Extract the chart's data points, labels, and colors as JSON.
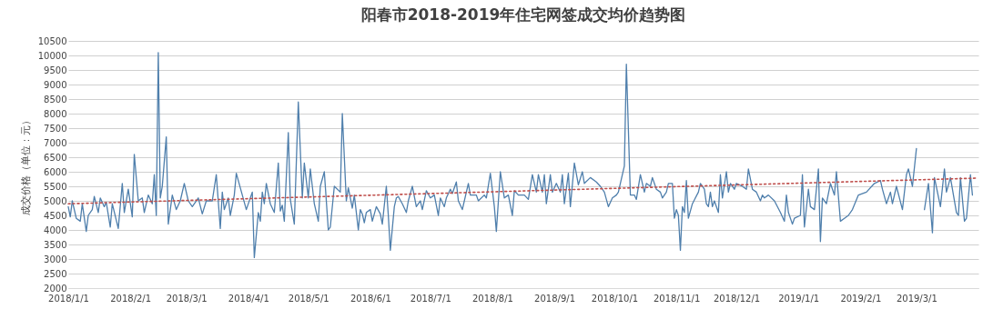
{
  "chart_data": {
    "type": "line",
    "title": "阳春市2018-2019年住宅网签成交均价趋势图",
    "ylabel": "成交价格（单位：元）",
    "xlim": [
      "2018-01-01",
      "2019-04-01"
    ],
    "xticks": [
      {
        "value": "2018-01-01",
        "label": "2018/1/1"
      },
      {
        "value": "2018-02-01",
        "label": "2018/2/1"
      },
      {
        "value": "2018-03-01",
        "label": "2018/3/1"
      },
      {
        "value": "2018-04-01",
        "label": "2018/4/1"
      },
      {
        "value": "2018-05-01",
        "label": "2018/5/1"
      },
      {
        "value": "2018-06-01",
        "label": "2018/6/1"
      },
      {
        "value": "2018-07-01",
        "label": "2018/7/1"
      },
      {
        "value": "2018-08-01",
        "label": "2018/8/1"
      },
      {
        "value": "2018-09-01",
        "label": "2018/9/1"
      },
      {
        "value": "2018-10-01",
        "label": "2018/10/1"
      },
      {
        "value": "2018-11-01",
        "label": "2018/11/1"
      },
      {
        "value": "2018-12-01",
        "label": "2018/12/1"
      },
      {
        "value": "2019-01-01",
        "label": "2019/1/1"
      },
      {
        "value": "2019-02-01",
        "label": "2019/2/1"
      },
      {
        "value": "2019-03-01",
        "label": "2019/3/1"
      }
    ],
    "ylim": [
      2000,
      10500
    ],
    "yticks": [
      2000,
      2500,
      3000,
      3500,
      4000,
      4500,
      5000,
      5500,
      6000,
      6500,
      7000,
      7500,
      8000,
      8500,
      9000,
      9500,
      10000,
      10500
    ],
    "grid": "y",
    "marker": "none",
    "series": [
      {
        "type": "line",
        "color": "#4f7fac",
        "line_style": "solid",
        "x": [
          "2018-01-01",
          "2018-01-02",
          "2018-01-03",
          "2018-01-05",
          "2018-01-07",
          "2018-01-08",
          "2018-01-10",
          "2018-01-11",
          "2018-01-13",
          "2018-01-14",
          "2018-01-16",
          "2018-01-17",
          "2018-01-19",
          "2018-01-20",
          "2018-01-22",
          "2018-01-23",
          "2018-01-26",
          "2018-01-28",
          "2018-01-29",
          "2018-01-31",
          "2018-02-02",
          "2018-02-03",
          "2018-02-05",
          "2018-02-07",
          "2018-02-08",
          "2018-02-10",
          "2018-02-12",
          "2018-02-13",
          "2018-02-14",
          "2018-02-15",
          "2018-02-16",
          "2018-02-17",
          "2018-02-19",
          "2018-02-20",
          "2018-02-22",
          "2018-02-24",
          "2018-02-26",
          "2018-02-28",
          "2018-03-02",
          "2018-03-04",
          "2018-03-07",
          "2018-03-09",
          "2018-03-11",
          "2018-03-14",
          "2018-03-16",
          "2018-03-18",
          "2018-03-19",
          "2018-03-20",
          "2018-03-22",
          "2018-03-23",
          "2018-03-25",
          "2018-03-26",
          "2018-03-29",
          "2018-03-31",
          "2018-04-03",
          "2018-04-04",
          "2018-04-06",
          "2018-04-07",
          "2018-04-08",
          "2018-04-09",
          "2018-04-10",
          "2018-04-12",
          "2018-04-14",
          "2018-04-16",
          "2018-04-17",
          "2018-04-18",
          "2018-04-19",
          "2018-04-21",
          "2018-04-22",
          "2018-04-24",
          "2018-04-26",
          "2018-04-28",
          "2018-04-29",
          "2018-05-01",
          "2018-05-02",
          "2018-05-04",
          "2018-05-06",
          "2018-05-07",
          "2018-05-09",
          "2018-05-11",
          "2018-05-12",
          "2018-05-14",
          "2018-05-17",
          "2018-05-18",
          "2018-05-20",
          "2018-05-21",
          "2018-05-23",
          "2018-05-24",
          "2018-05-26",
          "2018-05-27",
          "2018-05-28",
          "2018-05-29",
          "2018-05-30",
          "2018-06-01",
          "2018-06-02",
          "2018-06-04",
          "2018-06-06",
          "2018-06-07",
          "2018-06-09",
          "2018-06-10",
          "2018-06-11",
          "2018-06-13",
          "2018-06-14",
          "2018-06-15",
          "2018-06-17",
          "2018-06-19",
          "2018-06-20",
          "2018-06-22",
          "2018-06-24",
          "2018-06-26",
          "2018-06-27",
          "2018-06-29",
          "2018-07-01",
          "2018-07-03",
          "2018-07-05",
          "2018-07-06",
          "2018-07-08",
          "2018-07-09",
          "2018-07-11",
          "2018-07-12",
          "2018-07-14",
          "2018-07-15",
          "2018-07-17",
          "2018-07-20",
          "2018-07-21",
          "2018-07-24",
          "2018-07-25",
          "2018-07-28",
          "2018-07-29",
          "2018-07-31",
          "2018-08-02",
          "2018-08-03",
          "2018-08-05",
          "2018-08-07",
          "2018-08-09",
          "2018-08-11",
          "2018-08-12",
          "2018-08-14",
          "2018-08-17",
          "2018-08-19",
          "2018-08-21",
          "2018-08-23",
          "2018-08-24",
          "2018-08-26",
          "2018-08-27",
          "2018-08-28",
          "2018-08-30",
          "2018-08-31",
          "2018-09-02",
          "2018-09-04",
          "2018-09-05",
          "2018-09-06",
          "2018-09-08",
          "2018-09-09",
          "2018-09-11",
          "2018-09-13",
          "2018-09-15",
          "2018-09-16",
          "2018-09-19",
          "2018-09-22",
          "2018-09-24",
          "2018-09-26",
          "2018-09-28",
          "2018-09-30",
          "2018-10-02",
          "2018-10-03",
          "2018-10-05",
          "2018-10-06",
          "2018-10-07",
          "2018-10-09",
          "2018-10-11",
          "2018-10-12",
          "2018-10-14",
          "2018-10-16",
          "2018-10-17",
          "2018-10-19",
          "2018-10-20",
          "2018-10-22",
          "2018-10-24",
          "2018-10-25",
          "2018-10-27",
          "2018-10-28",
          "2018-10-30",
          "2018-10-31",
          "2018-11-01",
          "2018-11-02",
          "2018-11-03",
          "2018-11-04",
          "2018-11-05",
          "2018-11-06",
          "2018-11-07",
          "2018-11-09",
          "2018-11-12",
          "2018-11-13",
          "2018-11-15",
          "2018-11-16",
          "2018-11-17",
          "2018-11-18",
          "2018-11-19",
          "2018-11-20",
          "2018-11-22",
          "2018-11-23",
          "2018-11-24",
          "2018-11-26",
          "2018-11-27",
          "2018-11-28",
          "2018-11-30",
          "2018-12-01",
          "2018-12-04",
          "2018-12-06",
          "2018-12-07",
          "2018-12-09",
          "2018-12-11",
          "2018-12-13",
          "2018-12-14",
          "2018-12-15",
          "2018-12-17",
          "2018-12-20",
          "2018-12-23",
          "2018-12-25",
          "2018-12-26",
          "2018-12-27",
          "2018-12-29",
          "2018-12-30",
          "2019-01-02",
          "2019-01-03",
          "2019-01-04",
          "2019-01-06",
          "2019-01-07",
          "2019-01-09",
          "2019-01-11",
          "2019-01-12",
          "2019-01-13",
          "2019-01-15",
          "2019-01-17",
          "2019-01-19",
          "2019-01-20",
          "2019-01-22",
          "2019-01-24",
          "2019-01-26",
          "2019-01-28",
          "2019-01-31",
          "2019-02-04",
          "2019-02-08",
          "2019-02-11",
          "2019-02-12",
          "2019-02-14",
          "2019-02-16",
          "2019-02-17",
          "2019-02-19",
          "2019-02-22",
          "2019-02-24",
          "2019-02-25",
          "2019-02-27",
          "2019-03-01",
          "2019-03-03",
          "2019-03-05",
          "2019-03-07",
          "2019-03-09",
          "2019-03-10",
          "2019-03-13",
          "2019-03-15",
          "2019-03-16",
          "2019-03-18",
          "2019-03-21",
          "2019-03-22",
          "2019-03-23",
          "2019-03-25",
          "2019-03-26",
          "2019-03-28",
          "2019-03-29"
        ],
        "values": [
          4800,
          4450,
          5000,
          4400,
          4300,
          4900,
          3950,
          4500,
          4700,
          5150,
          4600,
          5100,
          4800,
          4950,
          4100,
          4900,
          4050,
          5600,
          4600,
          5400,
          4450,
          6600,
          5000,
          5100,
          4600,
          5200,
          4900,
          5900,
          4500,
          10100,
          5100,
          5500,
          7200,
          4200,
          5200,
          4700,
          5000,
          5600,
          5000,
          4800,
          5100,
          4550,
          5000,
          5000,
          5900,
          4050,
          5300,
          4700,
          5100,
          4500,
          5200,
          5950,
          5200,
          4700,
          5300,
          3050,
          4600,
          4300,
          5300,
          4900,
          5600,
          4900,
          4600,
          6300,
          4650,
          4850,
          4300,
          7350,
          5050,
          4200,
          8400,
          5100,
          6300,
          5100,
          6100,
          4900,
          4300,
          5500,
          6000,
          4000,
          4100,
          5500,
          5300,
          8000,
          5000,
          5450,
          4750,
          5200,
          4000,
          4700,
          4550,
          4250,
          4600,
          4700,
          4300,
          4800,
          4550,
          4200,
          5500,
          4500,
          3300,
          4800,
          5100,
          5150,
          4900,
          4600,
          5000,
          5500,
          4800,
          5000,
          4700,
          5350,
          5100,
          5200,
          4500,
          5100,
          4800,
          5100,
          5400,
          5250,
          5650,
          5000,
          4700,
          5600,
          5200,
          5200,
          5000,
          5200,
          5100,
          5950,
          4800,
          3950,
          6000,
          5100,
          5200,
          4500,
          5350,
          5200,
          5200,
          5050,
          5900,
          5300,
          5900,
          5300,
          5900,
          4900,
          5900,
          5300,
          5600,
          5300,
          5900,
          4900,
          5950,
          4800,
          6300,
          5550,
          6000,
          5600,
          5800,
          5650,
          5500,
          5300,
          4800,
          5100,
          5200,
          5300,
          5900,
          6200,
          9700,
          5200,
          5200,
          5050,
          5900,
          5300,
          5600,
          5500,
          5800,
          5400,
          5300,
          5100,
          5300,
          5600,
          5600,
          4400,
          4700,
          4500,
          3300,
          4800,
          4600,
          5700,
          4400,
          4900,
          5300,
          5600,
          5400,
          4900,
          4800,
          5300,
          4800,
          5000,
          4600,
          5900,
          5100,
          6000,
          5300,
          5600,
          5400,
          5600,
          5500,
          5400,
          6100,
          5400,
          5300,
          5000,
          5200,
          5100,
          5200,
          5000,
          4600,
          4300,
          5200,
          4600,
          4200,
          4400,
          4500,
          5900,
          4100,
          5400,
          4800,
          4700,
          6100,
          3600,
          5100,
          4900,
          5600,
          5200,
          6000,
          4300,
          4400,
          4500,
          4700,
          5200,
          5300,
          5600,
          5700,
          5400,
          4900,
          5300,
          4900,
          5500,
          4700,
          5900,
          6100,
          5500,
          6800,
          null,
          4700,
          5600,
          3900,
          5800,
          4800,
          6100,
          5300,
          5800,
          4600,
          4500,
          5800,
          4300,
          4400,
          5900,
          5200
        ]
      },
      {
        "type": "line",
        "color": "#c0504d",
        "line_style": "dotted",
        "x": [
          "2018-01-01",
          "2019-03-31"
        ],
        "values": [
          4900,
          5780
        ]
      }
    ]
  }
}
